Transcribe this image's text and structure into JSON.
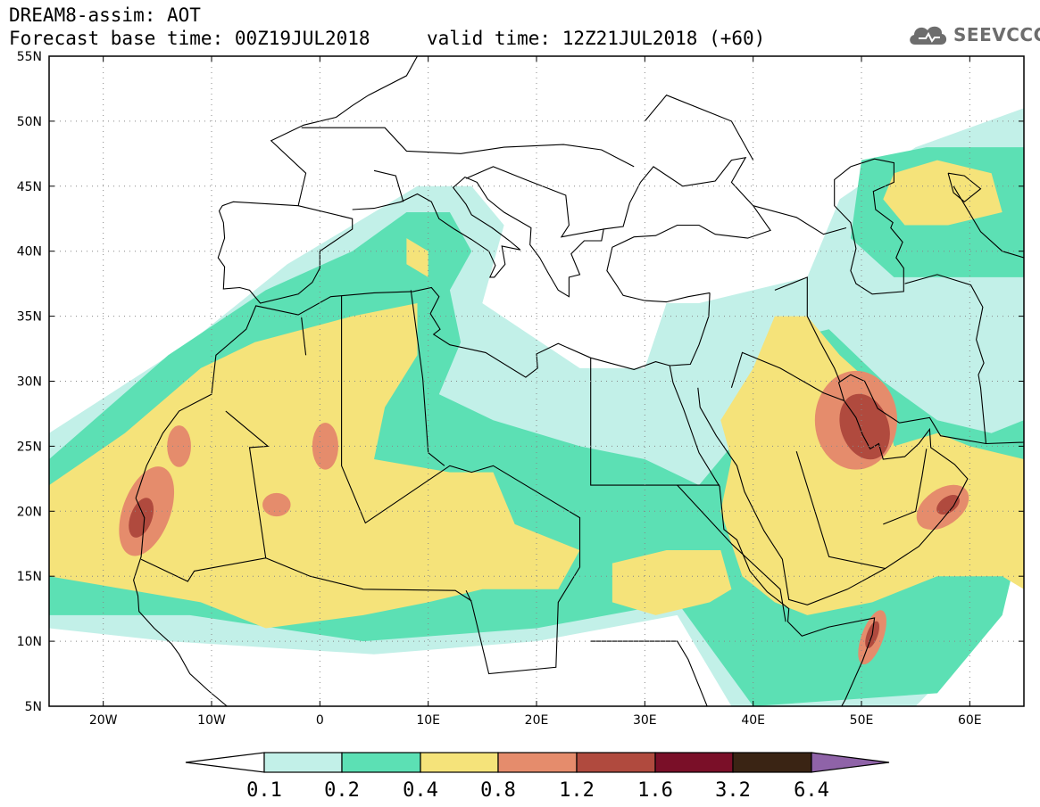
{
  "header": {
    "line1": "DREAM8-assim: AOT",
    "forecast": "Forecast base time: 00Z19JUL2018",
    "valid": "valid time: 12Z21JUL2018 (+60)",
    "logo": "SEEVCCC"
  },
  "map": {
    "lon_range": [
      -25,
      65
    ],
    "lat_range": [
      5,
      55
    ],
    "grid": "dotted",
    "lat_ticks": [
      "55N",
      "50N",
      "45N",
      "40N",
      "35N",
      "30N",
      "25N",
      "20N",
      "15N",
      "10N",
      "5N"
    ],
    "lon_ticks": [
      "20W",
      "10W",
      "0",
      "10E",
      "20E",
      "30E",
      "40E",
      "50E",
      "60E"
    ]
  },
  "colorbar": {
    "thresholds": [
      "0.1",
      "0.2",
      "0.4",
      "0.8",
      "1.2",
      "1.6",
      "3.2",
      "6.4"
    ],
    "colors": [
      "#ffffff",
      "#c2f0e8",
      "#5ce0b4",
      "#f5e37a",
      "#e58c6c",
      "#b04a3e",
      "#7a0f28",
      "#3a2414",
      "#8f63a8"
    ]
  }
}
